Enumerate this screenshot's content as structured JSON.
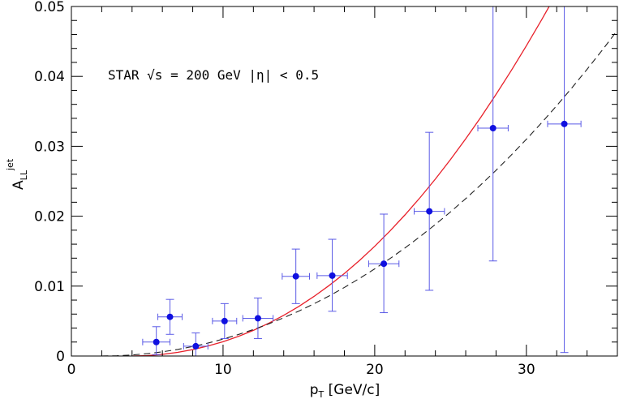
{
  "chart_data": {
    "type": "scatter",
    "title": "",
    "xlabel": {
      "main": "p",
      "sub": "T",
      "rest": " [GeV/c]"
    },
    "ylabel": {
      "main": "A",
      "sup": "jet",
      "sub": "LL"
    },
    "xlim": [
      0,
      36
    ],
    "ylim": [
      0,
      0.05
    ],
    "x_ticks": [
      0,
      10,
      20,
      30
    ],
    "y_ticks": [
      0,
      0.01,
      0.02,
      0.03,
      0.04,
      0.05
    ],
    "x_tick_labels": [
      "0",
      "10",
      "20",
      "30"
    ],
    "y_tick_labels": [
      "0",
      "0.01",
      "0.02",
      "0.03",
      "0.04",
      "0.05"
    ],
    "x_minor_step": 2,
    "y_minor_step": 0.002,
    "grid": false,
    "annotation": "STAR √s = 200 GeV   |η|  < 0.5",
    "series": [
      {
        "kind": "points",
        "color": "#1010e0",
        "errorbar_color": "#5a5ae6",
        "points": [
          {
            "x": 5.6,
            "y": 0.002,
            "xerr": 0.9,
            "yerr_lo": 0.0018,
            "yerr_hi": 0.0022
          },
          {
            "x": 6.5,
            "y": 0.0056,
            "xerr": 0.8,
            "yerr_lo": 0.0025,
            "yerr_hi": 0.0025
          },
          {
            "x": 8.2,
            "y": 0.0014,
            "xerr": 0.8,
            "yerr_lo": 0.0014,
            "yerr_hi": 0.0019
          },
          {
            "x": 10.1,
            "y": 0.005,
            "xerr": 0.8,
            "yerr_lo": 0.0025,
            "yerr_hi": 0.0025
          },
          {
            "x": 12.3,
            "y": 0.0054,
            "xerr": 1.0,
            "yerr_lo": 0.0029,
            "yerr_hi": 0.0029
          },
          {
            "x": 14.8,
            "y": 0.0114,
            "xerr": 0.9,
            "yerr_lo": 0.0039,
            "yerr_hi": 0.0039
          },
          {
            "x": 17.2,
            "y": 0.0115,
            "xerr": 1.0,
            "yerr_lo": 0.0051,
            "yerr_hi": 0.0052
          },
          {
            "x": 20.6,
            "y": 0.0132,
            "xerr": 1.0,
            "yerr_lo": 0.007,
            "yerr_hi": 0.0071
          },
          {
            "x": 23.6,
            "y": 0.0207,
            "xerr": 1.0,
            "yerr_lo": 0.0113,
            "yerr_hi": 0.0113
          },
          {
            "x": 27.8,
            "y": 0.0326,
            "xerr": 1.0,
            "yerr_lo": 0.019,
            "yerr_hi": 0.0174
          },
          {
            "x": 32.5,
            "y": 0.0332,
            "xerr": 1.1,
            "yerr_lo": 0.0327,
            "yerr_hi": 0.0168
          }
        ]
      },
      {
        "kind": "curve",
        "style": "solid",
        "color": "#e8202a",
        "points": [
          [
            4,
            0
          ],
          [
            5,
            6e-05
          ],
          [
            6,
            0.00024
          ],
          [
            7,
            0.00052
          ],
          [
            8,
            0.00092
          ],
          [
            9,
            0.00143
          ],
          [
            10,
            0.00205
          ],
          [
            11,
            0.0028
          ],
          [
            12,
            0.00367
          ],
          [
            13,
            0.00468
          ],
          [
            14,
            0.00582
          ],
          [
            15,
            0.0071
          ],
          [
            16,
            0.00853
          ],
          [
            17,
            0.0101
          ],
          [
            18,
            0.01181
          ],
          [
            19,
            0.01368
          ],
          [
            20,
            0.0157
          ],
          [
            21,
            0.01787
          ],
          [
            22,
            0.0202
          ],
          [
            23,
            0.02268
          ],
          [
            24,
            0.02532
          ],
          [
            25,
            0.02812
          ],
          [
            26,
            0.03107
          ],
          [
            27,
            0.03417
          ],
          [
            28,
            0.03743
          ],
          [
            29,
            0.04083
          ],
          [
            30,
            0.04438
          ],
          [
            31,
            0.04808
          ],
          [
            31.5,
            0.05
          ]
        ]
      },
      {
        "kind": "curve",
        "style": "dashed",
        "color": "#222222",
        "points": [
          [
            2,
            0
          ],
          [
            3,
            4e-05
          ],
          [
            4,
            0.00015
          ],
          [
            5,
            0.00034
          ],
          [
            6,
            0.0006
          ],
          [
            7,
            0.00094
          ],
          [
            8,
            0.00136
          ],
          [
            9,
            0.00185
          ],
          [
            10,
            0.00242
          ],
          [
            11,
            0.00307
          ],
          [
            12,
            0.00379
          ],
          [
            13,
            0.00459
          ],
          [
            14,
            0.00547
          ],
          [
            15,
            0.00643
          ],
          [
            16,
            0.00748
          ],
          [
            17,
            0.0086
          ],
          [
            18,
            0.00981
          ],
          [
            19,
            0.0111
          ],
          [
            20,
            0.01247
          ],
          [
            21,
            0.01393
          ],
          [
            22,
            0.01547
          ],
          [
            23,
            0.0171
          ],
          [
            24,
            0.01882
          ],
          [
            25,
            0.02062
          ],
          [
            26,
            0.02251
          ],
          [
            27,
            0.0245
          ],
          [
            28,
            0.02657
          ],
          [
            29,
            0.02874
          ],
          [
            30,
            0.031
          ],
          [
            31,
            0.03336
          ],
          [
            32,
            0.03581
          ],
          [
            33,
            0.03836
          ],
          [
            34,
            0.04101
          ],
          [
            35,
            0.04375
          ],
          [
            36,
            0.04659
          ]
        ]
      }
    ]
  }
}
